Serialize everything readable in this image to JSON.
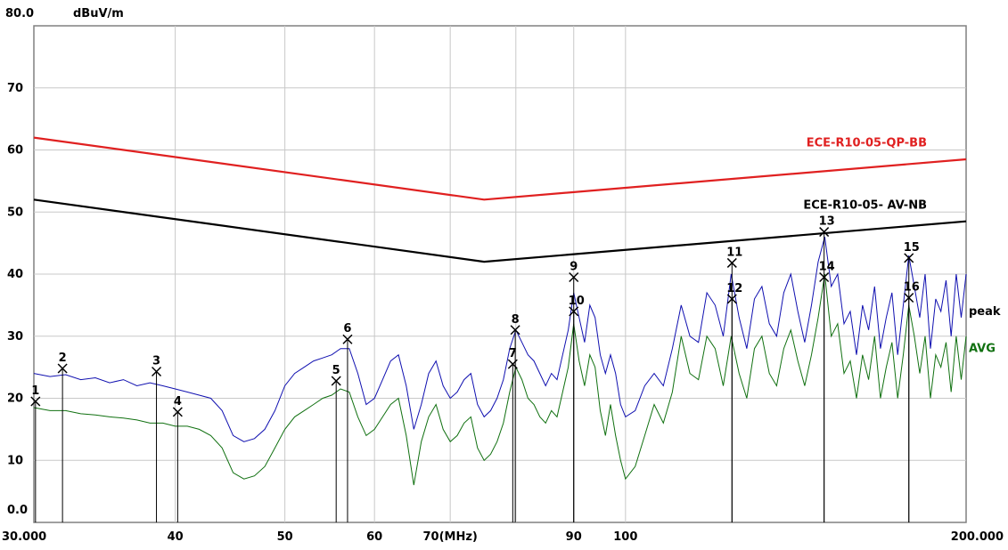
{
  "chart_data": {
    "type": "line",
    "x_scale": "log",
    "x_unit": "(MHz)",
    "y_unit": "dBuV/m",
    "xlim": [
      30,
      200
    ],
    "ylim": [
      0,
      80
    ],
    "grid": true,
    "y_ticks": [
      {
        "value": 0,
        "label": "0.0"
      },
      {
        "value": 10,
        "label": "10"
      },
      {
        "value": 20,
        "label": "20"
      },
      {
        "value": 30,
        "label": "30"
      },
      {
        "value": 40,
        "label": "40"
      },
      {
        "value": 50,
        "label": "50"
      },
      {
        "value": 60,
        "label": "60"
      },
      {
        "value": 70,
        "label": "70"
      },
      {
        "value": 80,
        "label": "80.0"
      }
    ],
    "x_ticks": [
      {
        "value": 30,
        "label": "30.000"
      },
      {
        "value": 40,
        "label": "40"
      },
      {
        "value": 50,
        "label": "50"
      },
      {
        "value": 60,
        "label": "60"
      },
      {
        "value": 70,
        "label": "70(MHz)"
      },
      {
        "value": 90,
        "label": "90"
      },
      {
        "value": 100,
        "label": "100"
      },
      {
        "value": 200,
        "label": "200.000"
      }
    ],
    "x_grid": [
      40,
      50,
      60,
      70,
      80,
      90,
      100,
      200
    ],
    "limit_lines": [
      {
        "name": "ECE-R10-05-QP-BB",
        "color": "#e02020",
        "points": [
          [
            30,
            62
          ],
          [
            75,
            52
          ],
          [
            200,
            58.5
          ]
        ]
      },
      {
        "name": "ECE-R10-05- AV-NB",
        "color": "#000000",
        "points": [
          [
            30,
            52
          ],
          [
            75,
            42
          ],
          [
            200,
            48.5
          ]
        ]
      }
    ],
    "series": [
      {
        "name": "peak",
        "color": "#1010b0",
        "points": [
          [
            30,
            24
          ],
          [
            31,
            23.5
          ],
          [
            32,
            23.8
          ],
          [
            33,
            23
          ],
          [
            34,
            23.3
          ],
          [
            35,
            22.5
          ],
          [
            36,
            23
          ],
          [
            37,
            22
          ],
          [
            38,
            22.5
          ],
          [
            39,
            22
          ],
          [
            40,
            21.5
          ],
          [
            41,
            21
          ],
          [
            42,
            20.5
          ],
          [
            43,
            20
          ],
          [
            44,
            18
          ],
          [
            45,
            14
          ],
          [
            46,
            13
          ],
          [
            47,
            13.5
          ],
          [
            48,
            15
          ],
          [
            49,
            18
          ],
          [
            50,
            22
          ],
          [
            51,
            24
          ],
          [
            52,
            25
          ],
          [
            53,
            26
          ],
          [
            54,
            26.5
          ],
          [
            55,
            27
          ],
          [
            56,
            28
          ],
          [
            57,
            28
          ],
          [
            58,
            24
          ],
          [
            59,
            19
          ],
          [
            60,
            20
          ],
          [
            61,
            23
          ],
          [
            62,
            26
          ],
          [
            63,
            27
          ],
          [
            64,
            22
          ],
          [
            65,
            15
          ],
          [
            66,
            19
          ],
          [
            67,
            24
          ],
          [
            68,
            26
          ],
          [
            69,
            22
          ],
          [
            70,
            20
          ],
          [
            71,
            21
          ],
          [
            72,
            23
          ],
          [
            73,
            24
          ],
          [
            74,
            19
          ],
          [
            75,
            17
          ],
          [
            76,
            18
          ],
          [
            77,
            20
          ],
          [
            78,
            23
          ],
          [
            79,
            28
          ],
          [
            80,
            31
          ],
          [
            81,
            29
          ],
          [
            82,
            27
          ],
          [
            83,
            26
          ],
          [
            84,
            24
          ],
          [
            85,
            22
          ],
          [
            86,
            24
          ],
          [
            87,
            23
          ],
          [
            88,
            27
          ],
          [
            89,
            31
          ],
          [
            90,
            37
          ],
          [
            91,
            33
          ],
          [
            92,
            29
          ],
          [
            93,
            35
          ],
          [
            94,
            33
          ],
          [
            95,
            27
          ],
          [
            96,
            24
          ],
          [
            97,
            27
          ],
          [
            98,
            24
          ],
          [
            99,
            19
          ],
          [
            100,
            17
          ],
          [
            102,
            18
          ],
          [
            104,
            22
          ],
          [
            106,
            24
          ],
          [
            108,
            22
          ],
          [
            110,
            28
          ],
          [
            112,
            35
          ],
          [
            114,
            30
          ],
          [
            116,
            29
          ],
          [
            118,
            37
          ],
          [
            120,
            35
          ],
          [
            122,
            30
          ],
          [
            124,
            40
          ],
          [
            126,
            33
          ],
          [
            128,
            28
          ],
          [
            130,
            36
          ],
          [
            132,
            38
          ],
          [
            134,
            32
          ],
          [
            136,
            30
          ],
          [
            138,
            37
          ],
          [
            140,
            40
          ],
          [
            142,
            34
          ],
          [
            144,
            29
          ],
          [
            146,
            35
          ],
          [
            148,
            42
          ],
          [
            150,
            46
          ],
          [
            152,
            38
          ],
          [
            154,
            40
          ],
          [
            156,
            32
          ],
          [
            158,
            34
          ],
          [
            160,
            27
          ],
          [
            162,
            35
          ],
          [
            164,
            31
          ],
          [
            166,
            38
          ],
          [
            168,
            28
          ],
          [
            170,
            33
          ],
          [
            172,
            37
          ],
          [
            174,
            27
          ],
          [
            176,
            35
          ],
          [
            178,
            43
          ],
          [
            180,
            38
          ],
          [
            182,
            33
          ],
          [
            184,
            40
          ],
          [
            186,
            28
          ],
          [
            188,
            36
          ],
          [
            190,
            34
          ],
          [
            192,
            39
          ],
          [
            194,
            30
          ],
          [
            196,
            40
          ],
          [
            198,
            33
          ],
          [
            200,
            40
          ]
        ]
      },
      {
        "name": "AVG",
        "color": "#107010",
        "points": [
          [
            30,
            18.5
          ],
          [
            31,
            18
          ],
          [
            32,
            18
          ],
          [
            33,
            17.5
          ],
          [
            34,
            17.3
          ],
          [
            35,
            17
          ],
          [
            36,
            16.8
          ],
          [
            37,
            16.5
          ],
          [
            38,
            16
          ],
          [
            39,
            16
          ],
          [
            40,
            15.5
          ],
          [
            41,
            15.5
          ],
          [
            42,
            15
          ],
          [
            43,
            14
          ],
          [
            44,
            12
          ],
          [
            45,
            8
          ],
          [
            46,
            7
          ],
          [
            47,
            7.5
          ],
          [
            48,
            9
          ],
          [
            49,
            12
          ],
          [
            50,
            15
          ],
          [
            51,
            17
          ],
          [
            52,
            18
          ],
          [
            53,
            19
          ],
          [
            54,
            20
          ],
          [
            55,
            20.5
          ],
          [
            56,
            21.5
          ],
          [
            57,
            21
          ],
          [
            58,
            17
          ],
          [
            59,
            14
          ],
          [
            60,
            15
          ],
          [
            61,
            17
          ],
          [
            62,
            19
          ],
          [
            63,
            20
          ],
          [
            64,
            14
          ],
          [
            65,
            6
          ],
          [
            66,
            13
          ],
          [
            67,
            17
          ],
          [
            68,
            19
          ],
          [
            69,
            15
          ],
          [
            70,
            13
          ],
          [
            71,
            14
          ],
          [
            72,
            16
          ],
          [
            73,
            17
          ],
          [
            74,
            12
          ],
          [
            75,
            10
          ],
          [
            76,
            11
          ],
          [
            77,
            13
          ],
          [
            78,
            16
          ],
          [
            79,
            21
          ],
          [
            80,
            25
          ],
          [
            81,
            23
          ],
          [
            82,
            20
          ],
          [
            83,
            19
          ],
          [
            84,
            17
          ],
          [
            85,
            16
          ],
          [
            86,
            18
          ],
          [
            87,
            17
          ],
          [
            88,
            21
          ],
          [
            89,
            25
          ],
          [
            90,
            32
          ],
          [
            91,
            26
          ],
          [
            92,
            22
          ],
          [
            93,
            27
          ],
          [
            94,
            25
          ],
          [
            95,
            18
          ],
          [
            96,
            14
          ],
          [
            97,
            19
          ],
          [
            98,
            14
          ],
          [
            99,
            10
          ],
          [
            100,
            7
          ],
          [
            102,
            9
          ],
          [
            104,
            14
          ],
          [
            106,
            19
          ],
          [
            108,
            16
          ],
          [
            110,
            21
          ],
          [
            112,
            30
          ],
          [
            114,
            24
          ],
          [
            116,
            23
          ],
          [
            118,
            30
          ],
          [
            120,
            28
          ],
          [
            122,
            22
          ],
          [
            124,
            30
          ],
          [
            126,
            24
          ],
          [
            128,
            20
          ],
          [
            130,
            28
          ],
          [
            132,
            30
          ],
          [
            134,
            24
          ],
          [
            136,
            22
          ],
          [
            138,
            28
          ],
          [
            140,
            31
          ],
          [
            142,
            26
          ],
          [
            144,
            22
          ],
          [
            146,
            27
          ],
          [
            148,
            33
          ],
          [
            150,
            40
          ],
          [
            152,
            30
          ],
          [
            154,
            32
          ],
          [
            156,
            24
          ],
          [
            158,
            26
          ],
          [
            160,
            20
          ],
          [
            162,
            27
          ],
          [
            164,
            23
          ],
          [
            166,
            30
          ],
          [
            168,
            20
          ],
          [
            170,
            25
          ],
          [
            172,
            29
          ],
          [
            174,
            20
          ],
          [
            176,
            27
          ],
          [
            178,
            35
          ],
          [
            180,
            30
          ],
          [
            182,
            24
          ],
          [
            184,
            30
          ],
          [
            186,
            20
          ],
          [
            188,
            27
          ],
          [
            190,
            25
          ],
          [
            192,
            29
          ],
          [
            194,
            21
          ],
          [
            196,
            30
          ],
          [
            198,
            23
          ],
          [
            200,
            30
          ]
        ]
      }
    ],
    "markers": [
      {
        "label": "1",
        "x": 30.1,
        "y": 19.5
      },
      {
        "label": "2",
        "x": 31.8,
        "y": 24.8
      },
      {
        "label": "3",
        "x": 38.5,
        "y": 24.3
      },
      {
        "label": "4",
        "x": 40.2,
        "y": 17.8
      },
      {
        "label": "5",
        "x": 55.5,
        "y": 22.8
      },
      {
        "label": "6",
        "x": 56.8,
        "y": 29.5
      },
      {
        "label": "7",
        "x": 79.5,
        "y": 25.5
      },
      {
        "label": "8",
        "x": 79.9,
        "y": 31
      },
      {
        "label": "9",
        "x": 90,
        "y": 39.5
      },
      {
        "label": "10",
        "x": 90,
        "y": 34
      },
      {
        "label": "11",
        "x": 124.2,
        "y": 41.8
      },
      {
        "label": "12",
        "x": 124.2,
        "y": 36
      },
      {
        "label": "13",
        "x": 149.8,
        "y": 46.8
      },
      {
        "label": "14",
        "x": 149.8,
        "y": 39.5
      },
      {
        "label": "15",
        "x": 178,
        "y": 42.6
      },
      {
        "label": "16",
        "x": 178,
        "y": 36.2
      }
    ]
  }
}
